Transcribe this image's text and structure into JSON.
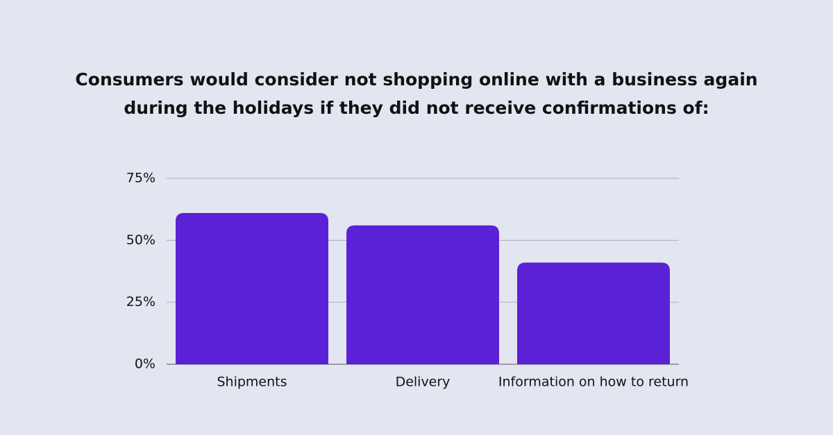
{
  "chart_data": {
    "type": "bar",
    "title": [
      "Consumers would consider not shopping online with a business again",
      "during the holidays if they did not receive confirmations of:"
    ],
    "categories": [
      "Shipments",
      "Delivery",
      "Information on how to return"
    ],
    "values": [
      61,
      56,
      41
    ],
    "color": "#5b21d6",
    "ylim": [
      0,
      75
    ],
    "yticks": [
      {
        "value": 0,
        "label": "0%"
      },
      {
        "value": 25,
        "label": "25%"
      },
      {
        "value": 50,
        "label": "50%"
      },
      {
        "value": 75,
        "label": "75%"
      }
    ],
    "grid": true
  }
}
